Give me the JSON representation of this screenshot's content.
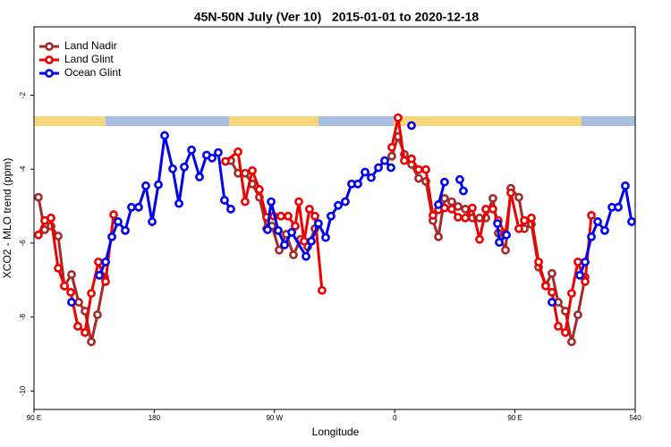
{
  "chart_data": {
    "type": "line",
    "title": "45N-50N July (Ver 10)   2015-01-01 to 2020-12-18",
    "x_label": "Longitude",
    "y_label": "XCO2 - MLO trend (ppm)",
    "xlim": [
      90,
      540
    ],
    "xticks": [
      {
        "value": 90,
        "label": "90 E"
      },
      180,
      {
        "value": 270,
        "label": "90 W"
      },
      {
        "value": 360,
        "label": "0"
      },
      {
        "value": 450,
        "label": "90 E"
      },
      540
    ],
    "ylim": [
      -10.5,
      -0.15
    ],
    "yticks": [
      -10,
      -8,
      -6,
      -4,
      -2
    ],
    "legend": "top-left",
    "series": [
      {
        "name": "Land Nadir",
        "color": "#a52a2a",
        "x": [
          [
            93.3,
            98.0,
            102.7,
            108.1,
            112.8,
            118.1,
            123.5,
            128.2,
            132.9,
            137.5,
            142.9
          ],
          [
            237.3,
            242.7,
            248.0,
            253.4,
            258.7,
            264.1,
            268.1,
            273.5,
            278.8,
            284.2,
            289.5,
            294.9,
            300.3
          ],
          [
            357.8,
            362.5,
            367.2,
            372.6,
            377.9,
            383.3,
            388.6,
            392.7,
            397.3,
            402.7,
            407.4,
            412.8,
            418.1,
            423.5,
            428.2,
            433.5,
            437.5,
            442.9,
            446.9,
            452.9,
            457.0,
            462.3,
            467.7,
            473.0,
            477.7,
            482.4,
            487.7,
            492.4,
            497.1,
            502.5
          ]
        ],
        "values": [
          [
            -4.76,
            -5.64,
            -5.54,
            -5.81,
            -7.16,
            -6.85,
            -7.6,
            -7.84,
            -8.67,
            -7.94,
            -6.92
          ],
          [
            -3.77,
            -4.11,
            -4.11,
            -4.4,
            -4.76,
            -5.61,
            -5.54,
            -6.19,
            -5.76,
            -6.32,
            -5.9,
            -6.1,
            -5.61
          ],
          [
            -3.65,
            -3.12,
            -3.6,
            -3.87,
            -4.25,
            -4.33,
            -5.39,
            -5.83,
            -4.79,
            -4.88,
            -5.01,
            -5.08,
            -5.32,
            -5.32,
            -5.32,
            -4.79,
            -5.73,
            -6.19,
            -4.52,
            -4.76,
            -5.61,
            -5.49,
            -6.65,
            -7.14,
            -6.82,
            -7.6,
            -7.84,
            -8.67,
            -7.94,
            -6.92
          ]
        ]
      },
      {
        "name": "Land Glint",
        "color": "#ee0000",
        "x": [
          [
            93.3,
            98.0,
            102.7,
            108.1,
            112.8,
            117.5,
            122.8,
            128.2,
            132.9,
            138.2,
            143.6,
            149.6
          ],
          [
            233.3,
            242.7,
            248.0,
            253.4,
            258.7,
            264.1,
            269.5,
            274.8,
            280.2,
            285.5,
            288.2,
            292.2,
            296.2,
            300.3,
            305.6
          ],
          [
            357.8,
            362.5,
            367.2,
            372.6,
            377.9,
            383.3,
            388.6,
            392.7,
            397.3,
            402.7,
            407.4,
            412.8,
            418.1,
            423.5,
            428.2,
            433.5,
            437.5,
            442.9,
            446.9,
            452.9,
            457.0,
            462.3,
            467.7,
            473.0,
            477.7,
            482.4,
            487.7,
            492.4,
            497.1,
            502.5,
            507.2
          ]
        ],
        "values": [
          [
            -5.78,
            -5.39,
            -5.32,
            -6.68,
            -7.16,
            -7.33,
            -8.25,
            -8.42,
            -7.36,
            -6.51,
            -7.04,
            -5.23
          ],
          [
            -3.79,
            -3.53,
            -4.88,
            -4.04,
            -4.55,
            -5.3,
            -5.27,
            -5.27,
            -5.27,
            -5.54,
            -4.88,
            -5.95,
            -5.08,
            -5.27,
            -7.28
          ],
          [
            -3.41,
            -2.61,
            -3.77,
            -3.72,
            -4.01,
            -4.01,
            -5.25,
            -5.1,
            -5.05,
            -5.08,
            -5.3,
            -5.32,
            -5.05,
            -5.9,
            -5.08,
            -5.08,
            -5.39,
            -5.76,
            -4.64,
            -5.61,
            -5.39,
            -5.32,
            -6.51,
            -7.16,
            -7.33,
            -8.25,
            -8.42,
            -7.36,
            -6.51,
            -7.04,
            -5.25
          ]
        ]
      },
      {
        "name": "Ocean Glint",
        "color": "#0000ee",
        "x": [
          [
            118.1
          ],
          [
            138.9,
            143.6,
            148.3,
            152.9,
            158.3,
            163.0,
            168.3,
            173.7,
            178.4,
            183.1,
            187.8,
            193.8,
            198.5,
            202.5,
            207.9,
            213.9,
            219.2,
            223.3,
            227.9,
            232.6,
            237.3
          ],
          [
            264.8,
            267.5,
            272.8,
            277.5,
            282.9,
            293.6,
            297.6,
            302.9,
            308.3,
            312.3,
            317.7,
            323.0,
            327.7,
            332.4,
            337.8,
            342.4,
            347.8,
            352.5,
            357.2
          ],
          [
            372.6
          ],
          [
            392.7,
            397.3
          ],
          [
            408.7,
            411.4
          ],
          [
            436.9,
            438.2,
            443.6
          ],
          [
            477.7
          ],
          [
            498.5,
            502.5,
            507.2,
            511.9,
            517.2,
            522.6,
            527.3,
            532.6,
            537.3
          ]
        ],
        "values": [
          [
            -7.6
          ],
          [
            -6.87,
            -6.51,
            -5.83,
            -5.42,
            -5.66,
            -5.03,
            -5.03,
            -4.45,
            -5.42,
            -4.42,
            -3.09,
            -3.99,
            -4.93,
            -3.94,
            -3.48,
            -4.21,
            -3.62,
            -3.7,
            -3.55,
            -4.84,
            -5.08
          ],
          [
            -5.64,
            -4.88,
            -5.66,
            -6.05,
            -5.71,
            -6.36,
            -5.95,
            -5.47,
            -5.85,
            -5.27,
            -4.98,
            -4.88,
            -4.4,
            -4.4,
            -4.08,
            -4.23,
            -3.96,
            -3.77,
            -3.96
          ],
          [
            -2.82
          ],
          [
            -4.96,
            -4.35
          ],
          [
            -4.28,
            -4.59
          ],
          [
            -5.47,
            -5.98,
            -5.78
          ],
          [
            -7.6
          ],
          [
            -6.87,
            -6.51,
            -5.83,
            -5.42,
            -5.66,
            -5.03,
            -5.03,
            -4.45,
            -5.42
          ]
        ]
      }
    ]
  }
}
